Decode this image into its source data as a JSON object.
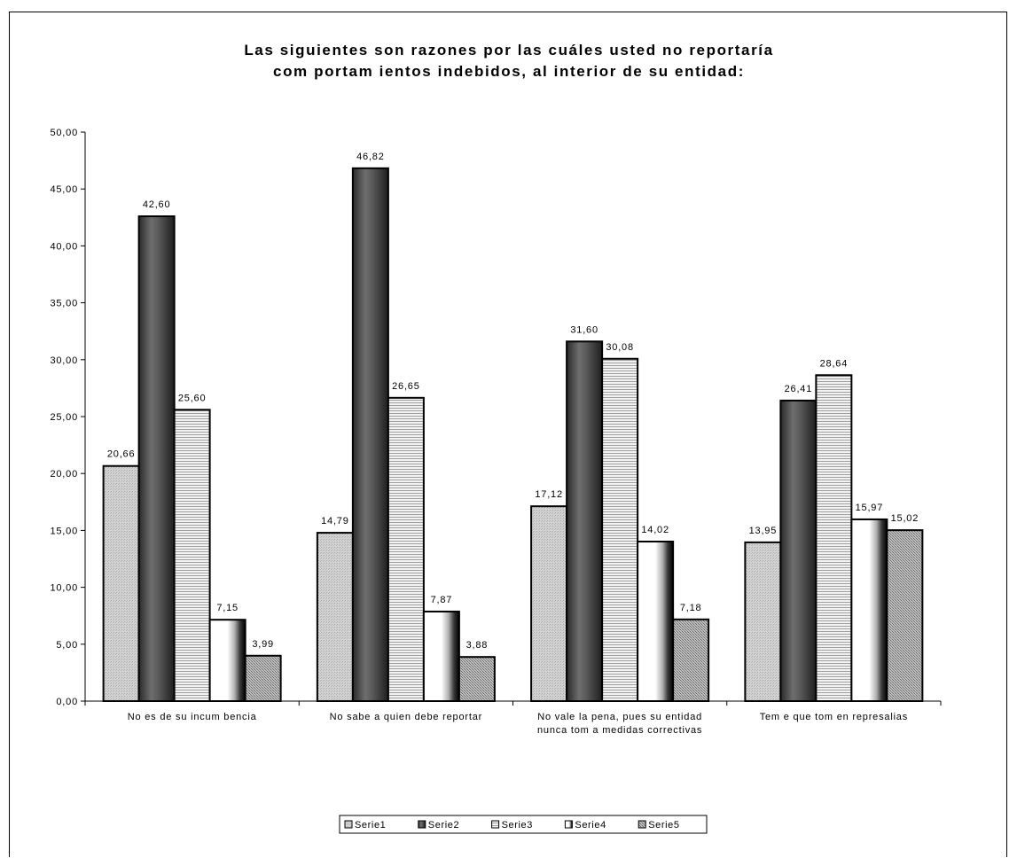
{
  "chart_data": {
    "type": "bar",
    "title": "Las siguientes son razones por las cuáles usted no reportaría comportamientos indebidos, al interior de su entidad:",
    "title_lines": [
      "Las siguientes son razones por las cuáles usted no reportaría",
      "com portam ientos indebidos, al interior de su entidad:"
    ],
    "categories": [
      "No es de su incum bencia",
      "No sabe a quien debe reportar",
      "No vale la pena, pues su entidad nunca tom a medidas correctivas",
      "Tem e que tom en represalias"
    ],
    "category_lines": [
      [
        "No es de su incum bencia"
      ],
      [
        "No sabe a quien debe reportar"
      ],
      [
        "No vale la pena, pues su entidad",
        "nunca tom a medidas correctivas"
      ],
      [
        "Tem e que tom en represalias"
      ]
    ],
    "series": [
      {
        "name": "Serie1",
        "values": [
          20.66,
          14.79,
          17.12,
          13.95
        ],
        "labels": [
          "20,66",
          "14,79",
          "17,12",
          "13,95"
        ]
      },
      {
        "name": "Serie2",
        "values": [
          42.6,
          46.82,
          31.6,
          26.41
        ],
        "labels": [
          "42,60",
          "46,82",
          "31,60",
          "26,41"
        ]
      },
      {
        "name": "Serie3",
        "values": [
          25.6,
          26.65,
          30.08,
          28.64
        ],
        "labels": [
          "25,60",
          "26,65",
          "30,08",
          "28,64"
        ]
      },
      {
        "name": "Serie4",
        "values": [
          7.15,
          7.87,
          14.02,
          15.97
        ],
        "labels": [
          "7,15",
          "7,87",
          "14,02",
          "15,97"
        ]
      },
      {
        "name": "Serie5",
        "values": [
          3.99,
          3.88,
          7.18,
          15.02
        ],
        "labels": [
          "3,99",
          "3,88",
          "7,18",
          "15,02"
        ]
      }
    ],
    "ylim": [
      0,
      50
    ],
    "y_ticks": [
      "0,00",
      "5,00",
      "10,00",
      "15,00",
      "20,00",
      "25,00",
      "30,00",
      "35,00",
      "40,00",
      "45,00",
      "50,00"
    ],
    "grid": false,
    "legend": "bottom"
  }
}
